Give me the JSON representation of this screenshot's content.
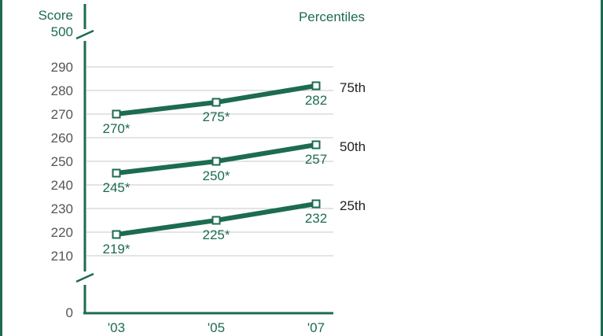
{
  "chart_data": {
    "type": "line",
    "ylabel": "Score",
    "legend_title": "Percentiles",
    "y_axis": {
      "break_top_label": "500",
      "bottom_label": "0",
      "ticks": [
        "290",
        "280",
        "270",
        "260",
        "250",
        "240",
        "230",
        "220",
        "210"
      ],
      "range": [
        210,
        290
      ]
    },
    "categories": [
      "'03",
      "'05",
      "'07"
    ],
    "series": [
      {
        "name": "75th",
        "values": [
          270,
          275,
          282
        ],
        "labels": [
          "270*",
          "275*",
          "282"
        ]
      },
      {
        "name": "50th",
        "values": [
          245,
          250,
          257
        ],
        "labels": [
          "245*",
          "250*",
          "257"
        ]
      },
      {
        "name": "25th",
        "values": [
          219,
          225,
          232
        ],
        "labels": [
          "219*",
          "225*",
          "232"
        ]
      }
    ],
    "colors": {
      "series": "#1d6b50",
      "axis": "#1d6b50",
      "text": "#1d6b50",
      "tick_text": "#555555",
      "grid": "#c8c8c8"
    },
    "grid": true
  }
}
